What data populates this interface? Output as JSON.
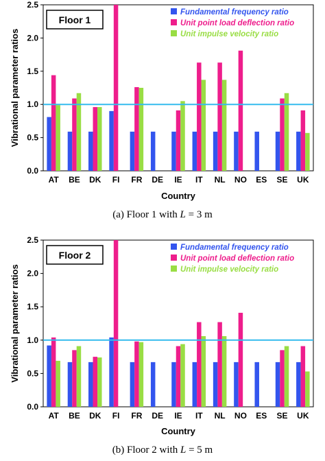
{
  "chart_data": [
    {
      "type": "bar",
      "panel_label": "Floor 1",
      "caption": {
        "prefix": "(a) Floor 1 with ",
        "variable": "L",
        "suffix": " = 3 m"
      },
      "xlabel": "Country",
      "ylabel": "Vibrational parameter ratios",
      "ylim": [
        0,
        2.5
      ],
      "yticks": [
        "0.0",
        "0.5",
        "1.0",
        "1.5",
        "2.0",
        "2.5"
      ],
      "reference_line": 1.0,
      "categories": [
        "AT",
        "BE",
        "DK",
        "FI",
        "FR",
        "DE",
        "IE",
        "IT",
        "NL",
        "NO",
        "ES",
        "SE",
        "UK"
      ],
      "legend_position": "top-right",
      "series": [
        {
          "name": "Fundamental frequency ratio",
          "color": "#3355ee",
          "values": [
            0.81,
            0.59,
            0.59,
            0.9,
            0.59,
            0.59,
            0.59,
            0.59,
            0.59,
            0.59,
            0.59,
            0.59,
            0.59
          ]
        },
        {
          "name": "Unit point load deflection ratio",
          "color": "#ee1e8c",
          "values": [
            1.44,
            1.09,
            0.96,
            2.5,
            1.26,
            null,
            0.91,
            1.63,
            1.63,
            1.81,
            null,
            1.09,
            0.91
          ]
        },
        {
          "name": "Unit impulse velocity ratio",
          "color": "#99dd44",
          "values": [
            0.99,
            1.17,
            0.96,
            null,
            1.25,
            null,
            1.05,
            1.37,
            1.37,
            null,
            null,
            1.17,
            0.57
          ]
        }
      ]
    },
    {
      "type": "bar",
      "panel_label": "Floor 2",
      "caption": {
        "prefix": "(b) Floor 2 with ",
        "variable": "L",
        "suffix": " = 5 m"
      },
      "xlabel": "Country",
      "ylabel": "Vibrational parameter ratios",
      "ylim": [
        0,
        2.5
      ],
      "yticks": [
        "0.0",
        "0.5",
        "1.0",
        "1.5",
        "2.0",
        "2.5"
      ],
      "reference_line": 1.0,
      "categories": [
        "AT",
        "BE",
        "DK",
        "FI",
        "FR",
        "DE",
        "IE",
        "IT",
        "NL",
        "NO",
        "ES",
        "SE",
        "UK"
      ],
      "legend_position": "top-right",
      "series": [
        {
          "name": "Fundamental frequency ratio",
          "color": "#3355ee",
          "values": [
            0.92,
            0.67,
            0.67,
            1.04,
            0.67,
            0.67,
            0.67,
            0.67,
            0.67,
            0.67,
            0.67,
            0.67,
            0.67
          ]
        },
        {
          "name": "Unit point load deflection ratio",
          "color": "#ee1e8c",
          "values": [
            1.04,
            0.85,
            0.75,
            2.5,
            0.98,
            null,
            0.91,
            1.27,
            1.27,
            1.41,
            null,
            0.85,
            0.91
          ]
        },
        {
          "name": "Unit impulse velocity ratio",
          "color": "#99dd44",
          "values": [
            0.69,
            0.91,
            0.74,
            null,
            0.97,
            null,
            0.94,
            1.06,
            1.06,
            null,
            null,
            0.91,
            0.53
          ]
        }
      ]
    }
  ]
}
